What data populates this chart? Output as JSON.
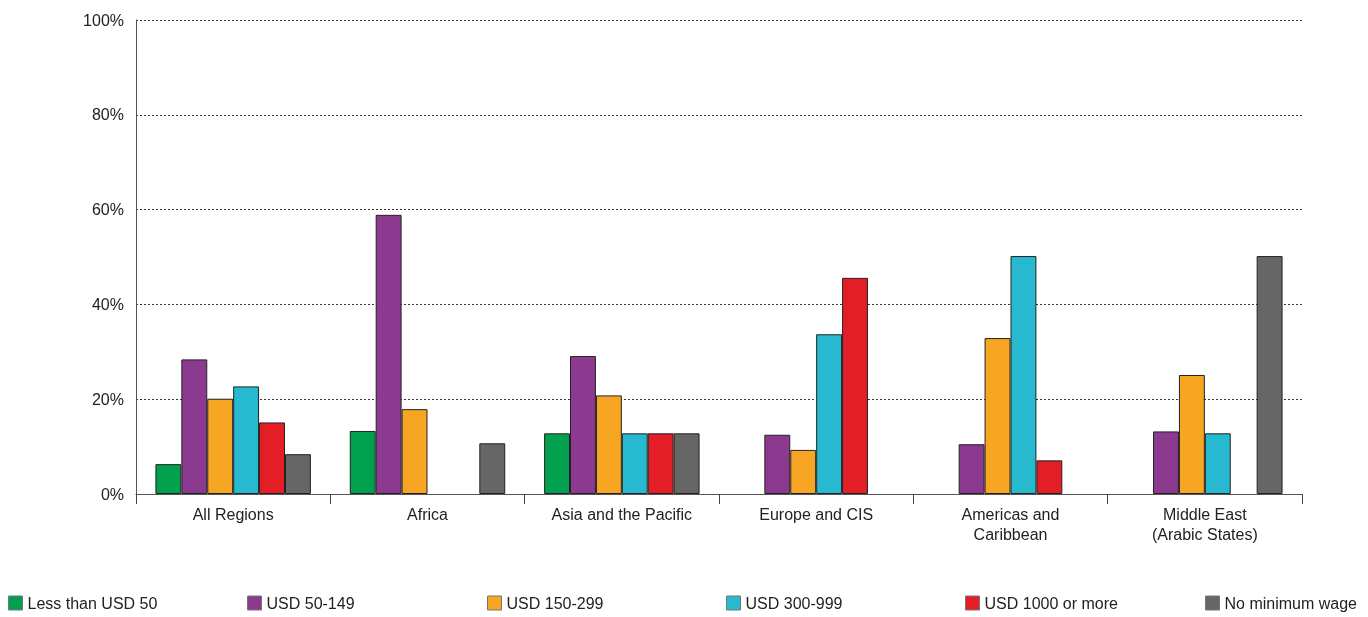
{
  "chart_data": {
    "type": "bar",
    "categories": [
      "All Regions",
      "Africa",
      "Asia and the Pacific",
      "Europe and CIS",
      "Americas and Caribbean",
      "Middle East (Arabic States)"
    ],
    "series": [
      {
        "name": "Less than USD 50",
        "color": "#00a04f",
        "values": [
          6.3,
          13.3,
          12.8,
          null,
          null,
          null
        ]
      },
      {
        "name": "USD 50-149",
        "color": "#8b3a8f",
        "values": [
          28.4,
          58.9,
          29.1,
          12.5,
          10.5,
          13.2
        ]
      },
      {
        "name": "USD 150-299",
        "color": "#f6a623",
        "values": [
          20.1,
          17.9,
          20.8,
          9.3,
          32.9,
          25.1
        ]
      },
      {
        "name": "USD 300-999",
        "color": "#27b9cf",
        "values": [
          22.7,
          null,
          12.8,
          33.7,
          50.2,
          12.8
        ]
      },
      {
        "name": "USD 1000 or more",
        "color": "#e31e26",
        "values": [
          15.1,
          null,
          12.8,
          45.6,
          7.1,
          null
        ]
      },
      {
        "name": "No minimum wage",
        "color": "#666666",
        "values": [
          8.4,
          10.7,
          12.8,
          null,
          null,
          50.2
        ]
      }
    ],
    "ylim": [
      0,
      100
    ],
    "yticks": [
      {
        "value": 0,
        "label": "0%"
      },
      {
        "value": 20,
        "label": "20%"
      },
      {
        "value": 40,
        "label": "40%"
      },
      {
        "value": 60,
        "label": "60%"
      },
      {
        "value": 80,
        "label": "80%"
      },
      {
        "value": 100,
        "label": "100%"
      }
    ],
    "grid": "y",
    "legend": "bottom"
  }
}
